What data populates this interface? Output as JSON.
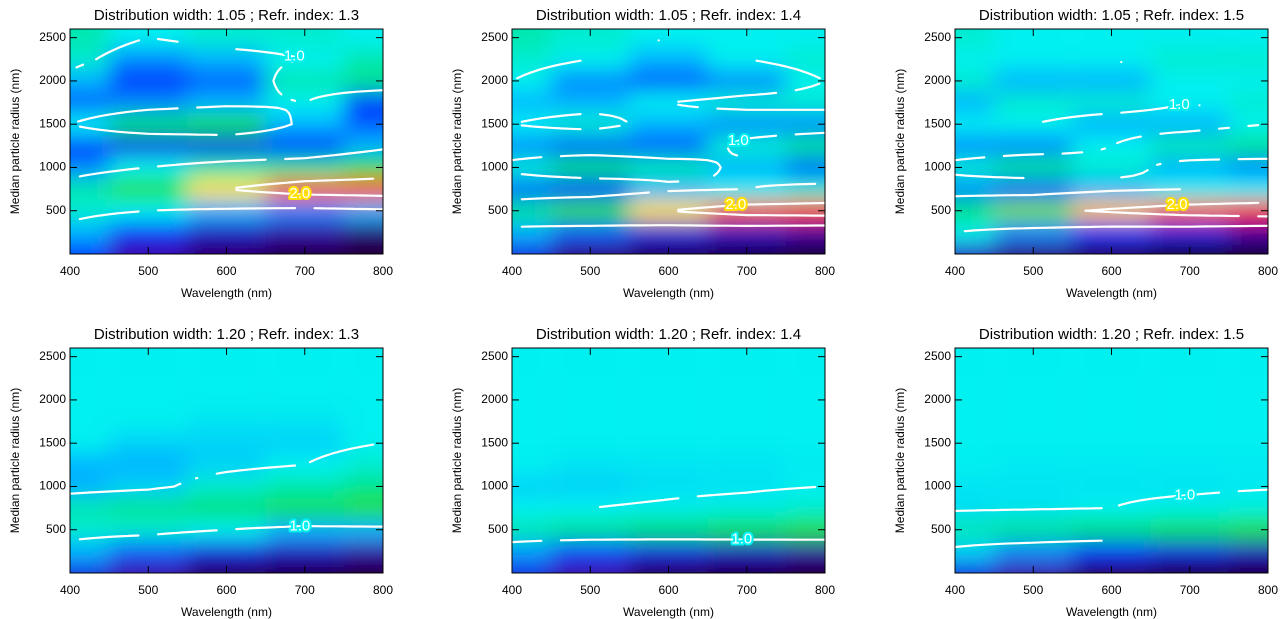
{
  "chart_data": [
    {
      "type": "contour",
      "title": "Distribution width: 1.05 ; Refr. index: 1.3",
      "xlabel": "Wavelength (nm)",
      "ylabel": "Median particle radius (nm)",
      "xlim": [
        400,
        800
      ],
      "ylim": [
        0,
        2600
      ],
      "xticks": [
        400,
        500,
        600,
        700,
        800
      ],
      "yticks": [
        500,
        1000,
        1500,
        2000,
        2500
      ],
      "x_grid": [
        400,
        500,
        600,
        700,
        800
      ],
      "y_grid": [
        0,
        250,
        500,
        750,
        1000,
        1250,
        1500,
        1750,
        2000,
        2250,
        2500
      ],
      "z": [
        [
          0.6,
          0.3,
          0.15,
          0.05,
          0.0
        ],
        [
          0.9,
          0.6,
          0.4,
          0.3,
          0.2
        ],
        [
          1.1,
          1.0,
          0.9,
          0.8,
          0.9
        ],
        [
          1.2,
          1.6,
          2.0,
          2.4,
          2.5
        ],
        [
          0.8,
          1.0,
          1.2,
          1.3,
          1.5
        ],
        [
          0.6,
          0.5,
          0.5,
          0.6,
          0.9
        ],
        [
          1.0,
          1.4,
          1.5,
          0.9,
          0.7
        ],
        [
          0.7,
          0.8,
          0.9,
          1.0,
          0.6
        ],
        [
          0.9,
          0.6,
          0.7,
          1.2,
          1.3
        ],
        [
          1.1,
          0.8,
          0.9,
          1.0,
          1.2
        ],
        [
          1.2,
          1.0,
          1.1,
          1.1,
          1.0
        ]
      ],
      "contour_levels": [
        {
          "value": 1,
          "label": "1.0"
        },
        {
          "value": 2,
          "label": "2.0"
        }
      ]
    },
    {
      "type": "contour",
      "title": "Distribution width: 1.05 ; Refr. index: 1.4",
      "xlabel": "Wavelength (nm)",
      "ylabel": "Median particle radius (nm)",
      "xlim": [
        400,
        800
      ],
      "ylim": [
        0,
        2600
      ],
      "xticks": [
        400,
        500,
        600,
        700,
        800
      ],
      "yticks": [
        500,
        1000,
        1500,
        2000,
        2500
      ],
      "x_grid": [
        400,
        500,
        600,
        700,
        800
      ],
      "y_grid": [
        0,
        250,
        500,
        750,
        1000,
        1250,
        1500,
        1750,
        2000,
        2250,
        2500
      ],
      "z": [
        [
          0.5,
          0.2,
          0.1,
          0.05,
          0.0
        ],
        [
          0.9,
          0.7,
          0.5,
          0.4,
          0.3
        ],
        [
          1.3,
          1.7,
          2.0,
          2.4,
          2.5
        ],
        [
          0.7,
          0.6,
          0.9,
          1.0,
          1.1
        ],
        [
          1.1,
          1.4,
          1.2,
          0.9,
          0.7
        ],
        [
          0.8,
          0.7,
          0.7,
          1.1,
          1.3
        ],
        [
          1.0,
          1.1,
          0.9,
          0.8,
          0.8
        ],
        [
          0.9,
          0.9,
          1.0,
          1.1,
          1.1
        ],
        [
          1.0,
          0.8,
          0.7,
          0.8,
          1.0
        ],
        [
          1.1,
          1.0,
          0.9,
          1.0,
          1.1
        ],
        [
          1.2,
          1.1,
          1.0,
          1.0,
          1.0
        ]
      ],
      "contour_levels": [
        {
          "value": 1,
          "label": "1.0"
        },
        {
          "value": 2,
          "label": "2.0"
        }
      ]
    },
    {
      "type": "contour",
      "title": "Distribution width: 1.05 ; Refr. index: 1.5",
      "xlabel": "Wavelength (nm)",
      "ylabel": "Median particle radius (nm)",
      "xlim": [
        400,
        800
      ],
      "ylim": [
        0,
        2600
      ],
      "xticks": [
        400,
        500,
        600,
        700,
        800
      ],
      "yticks": [
        500,
        1000,
        1500,
        2000,
        2500
      ],
      "x_grid": [
        400,
        500,
        600,
        700,
        800
      ],
      "y_grid": [
        0,
        250,
        500,
        750,
        1000,
        1250,
        1500,
        1750,
        2000,
        2250,
        2500
      ],
      "z": [
        [
          0.4,
          0.2,
          0.1,
          0.0,
          0.0
        ],
        [
          1.0,
          0.8,
          0.6,
          0.5,
          0.3
        ],
        [
          1.4,
          1.8,
          2.1,
          2.4,
          2.6
        ],
        [
          0.8,
          0.7,
          0.9,
          1.0,
          1.0
        ],
        [
          1.1,
          1.3,
          1.1,
          0.9,
          0.8
        ],
        [
          0.8,
          0.8,
          1.0,
          1.2,
          1.3
        ],
        [
          1.0,
          1.0,
          0.9,
          0.9,
          1.0
        ],
        [
          0.9,
          1.1,
          1.1,
          1.0,
          1.1
        ],
        [
          1.1,
          0.9,
          0.9,
          1.0,
          1.0
        ],
        [
          1.0,
          1.0,
          1.0,
          1.1,
          1.1
        ],
        [
          1.1,
          1.0,
          1.0,
          1.0,
          1.0
        ]
      ],
      "contour_levels": [
        {
          "value": 1,
          "label": "1.0"
        },
        {
          "value": 2,
          "label": "2.0"
        }
      ]
    },
    {
      "type": "contour",
      "title": "Distribution width: 1.20 ; Refr. index: 1.3",
      "xlabel": "Wavelength (nm)",
      "ylabel": "Median particle radius (nm)",
      "xlim": [
        400,
        800
      ],
      "ylim": [
        0,
        2600
      ],
      "xticks": [
        400,
        500,
        600,
        700,
        800
      ],
      "yticks": [
        500,
        1000,
        1500,
        2000,
        2500
      ],
      "x_grid": [
        400,
        500,
        600,
        700,
        800
      ],
      "y_grid": [
        0,
        250,
        500,
        750,
        1000,
        1250,
        1500,
        1750,
        2000,
        2250,
        2500
      ],
      "z": [
        [
          0.5,
          0.3,
          0.1,
          0.05,
          0.0
        ],
        [
          0.9,
          0.7,
          0.5,
          0.4,
          0.3
        ],
        [
          1.1,
          1.1,
          1.0,
          0.9,
          0.9
        ],
        [
          1.2,
          1.3,
          1.4,
          1.5,
          1.6
        ],
        [
          0.9,
          0.95,
          1.1,
          1.2,
          1.3
        ],
        [
          0.9,
          0.9,
          0.95,
          1.0,
          1.1
        ],
        [
          1.0,
          0.95,
          0.95,
          0.95,
          1.0
        ],
        [
          1.0,
          1.0,
          0.98,
          0.98,
          1.0
        ],
        [
          1.0,
          1.0,
          1.0,
          1.0,
          1.0
        ],
        [
          1.0,
          1.0,
          1.0,
          1.0,
          1.0
        ],
        [
          1.0,
          1.0,
          1.0,
          1.0,
          1.0
        ]
      ],
      "contour_levels": [
        {
          "value": 1,
          "label": "1.0"
        }
      ]
    },
    {
      "type": "contour",
      "title": "Distribution width: 1.20 ; Refr. index: 1.4",
      "xlabel": "Wavelength (nm)",
      "ylabel": "Median particle radius (nm)",
      "xlim": [
        400,
        800
      ],
      "ylim": [
        0,
        2600
      ],
      "xticks": [
        400,
        500,
        600,
        700,
        800
      ],
      "yticks": [
        500,
        1000,
        1500,
        2000,
        2500
      ],
      "x_grid": [
        400,
        500,
        600,
        700,
        800
      ],
      "y_grid": [
        0,
        250,
        500,
        750,
        1000,
        1250,
        1500,
        1750,
        2000,
        2250,
        2500
      ],
      "z": [
        [
          0.5,
          0.3,
          0.1,
          0.05,
          0.0
        ],
        [
          0.85,
          0.65,
          0.5,
          0.4,
          0.3
        ],
        [
          1.2,
          1.3,
          1.4,
          1.5,
          1.6
        ],
        [
          1.0,
          1.0,
          1.02,
          1.05,
          1.1
        ],
        [
          0.95,
          0.95,
          0.97,
          0.98,
          1.0
        ],
        [
          1.0,
          0.98,
          0.98,
          0.98,
          0.99
        ],
        [
          1.0,
          1.0,
          1.0,
          1.0,
          1.0
        ],
        [
          1.0,
          1.0,
          1.0,
          1.0,
          1.0
        ],
        [
          1.0,
          1.0,
          1.0,
          1.0,
          1.0
        ],
        [
          1.0,
          1.0,
          1.0,
          1.0,
          1.0
        ],
        [
          1.0,
          1.0,
          1.0,
          1.0,
          1.0
        ]
      ],
      "contour_levels": [
        {
          "value": 1,
          "label": "1.0"
        }
      ]
    },
    {
      "type": "contour",
      "title": "Distribution width: 1.20 ; Refr. index: 1.5",
      "xlabel": "Wavelength (nm)",
      "ylabel": "Median particle radius (nm)",
      "xlim": [
        400,
        800
      ],
      "ylim": [
        0,
        2600
      ],
      "xticks": [
        400,
        500,
        600,
        700,
        800
      ],
      "yticks": [
        500,
        1000,
        1500,
        2000,
        2500
      ],
      "x_grid": [
        400,
        500,
        600,
        700,
        800
      ],
      "y_grid": [
        0,
        250,
        500,
        750,
        1000,
        1250,
        1500,
        1750,
        2000,
        2250,
        2500
      ],
      "z": [
        [
          0.5,
          0.3,
          0.1,
          0.03,
          0.0
        ],
        [
          0.95,
          0.8,
          0.6,
          0.5,
          0.4
        ],
        [
          1.2,
          1.3,
          1.4,
          1.5,
          1.6
        ],
        [
          0.97,
          0.98,
          1.0,
          1.03,
          1.06
        ],
        [
          0.98,
          0.98,
          0.98,
          0.98,
          0.99
        ],
        [
          1.0,
          0.99,
          0.99,
          0.99,
          0.99
        ],
        [
          1.0,
          1.0,
          1.0,
          1.0,
          1.0
        ],
        [
          1.0,
          1.0,
          1.0,
          1.0,
          1.0
        ],
        [
          1.0,
          1.0,
          1.0,
          1.0,
          1.0
        ],
        [
          1.0,
          1.0,
          1.0,
          1.0,
          1.0
        ],
        [
          1.0,
          1.0,
          1.0,
          1.0,
          1.0
        ]
      ],
      "contour_levels": [
        {
          "value": 1,
          "label": "1.0"
        }
      ]
    }
  ],
  "colormap": [
    {
      "value": 0,
      "color": "#1a0028"
    },
    {
      "value": 0.3,
      "color": "#3a00a8"
    },
    {
      "value": 0.6,
      "color": "#0030ff"
    },
    {
      "value": 0.9,
      "color": "#00b4ff"
    },
    {
      "value": 1.0,
      "color": "#00f0f0"
    },
    {
      "value": 1.4,
      "color": "#00e070"
    },
    {
      "value": 1.7,
      "color": "#30e000"
    },
    {
      "value": 2.0,
      "color": "#ffe000"
    },
    {
      "value": 2.3,
      "color": "#ff8000"
    },
    {
      "value": 2.6,
      "color": "#ff2000"
    }
  ]
}
